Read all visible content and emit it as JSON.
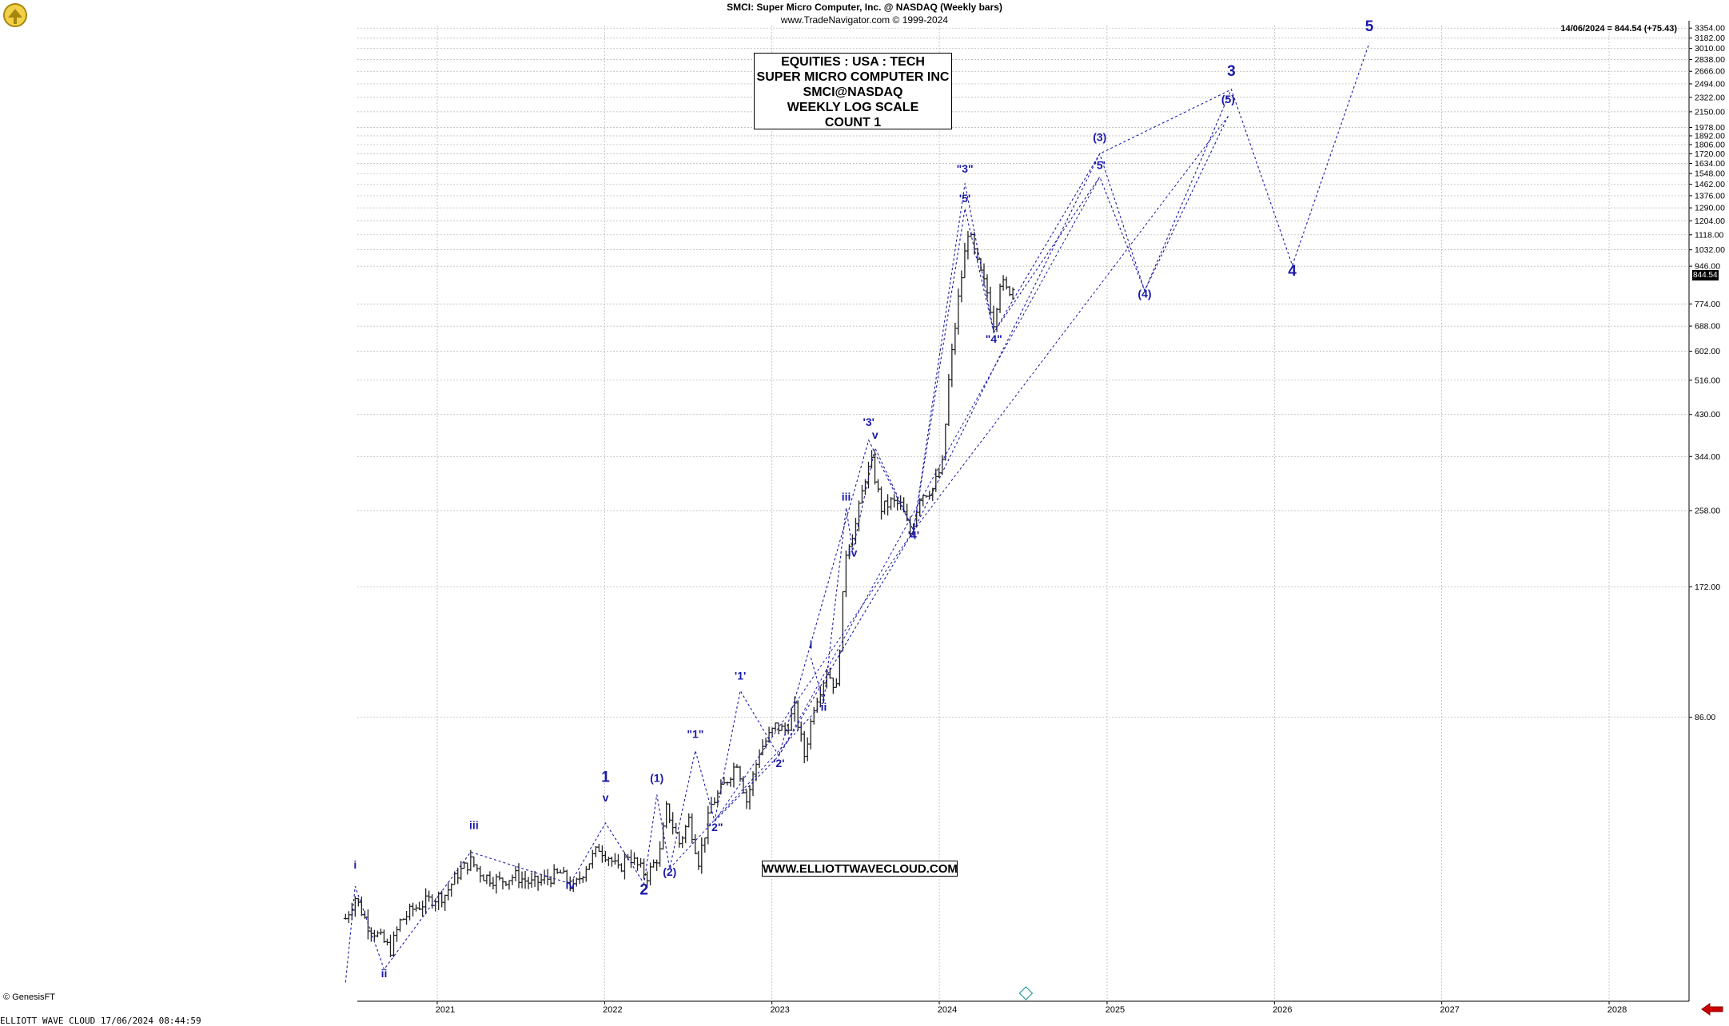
{
  "header": {
    "title": "SMCI:  Super Micro Computer, Inc. @ NASDAQ  (Weekly bars)",
    "subtitle": "www.TradeNavigator.com © 1999-2024"
  },
  "last_value_label": "14/06/2024 = 844.54 (+75.43)",
  "price_tag": "844.54",
  "info_box": [
    "EQUITIES : USA : TECH",
    "SUPER MICRO COMPUTER INC",
    "SMCI@NASDAQ",
    "WEEKLY LOG SCALE",
    "COUNT 1"
  ],
  "website": "WWW.ELLIOTTWAVECLOUD.COM",
  "copyright": "© GenesisFT",
  "footer": "ELLIOTT WAVE CLOUD   17/06/2024 08:44:59",
  "colors": {
    "wave": "#1a1aa8",
    "bar": "#222222",
    "grid": "#b0b0b0",
    "accent": "#cc0000"
  },
  "icons": [
    "bull-bear-logo-icon",
    "diamond-marker-icon",
    "red-arrow-icon"
  ],
  "chart_data": {
    "type": "ohlc",
    "scale": "log",
    "xlabel": "",
    "ylabel": "",
    "x_ticks": [
      "2021",
      "2022",
      "2023",
      "2024",
      "2025",
      "2026",
      "2027",
      "2028"
    ],
    "y_ticks": [
      86,
      172,
      258,
      344,
      430,
      516,
      602,
      688,
      774,
      946,
      1032,
      1118,
      1204,
      1290,
      1376,
      1462,
      1548,
      1634,
      1720,
      1806,
      1892,
      1978,
      2150,
      2322,
      2494,
      2666,
      2838,
      3010,
      3182,
      3354
    ],
    "ylim": [
      19,
      3400
    ],
    "last_close": 844.54,
    "price_path": [
      [
        "2020-06-15",
        29.5
      ],
      [
        "2020-07-06",
        33.0
      ],
      [
        "2020-08-03",
        28.5
      ],
      [
        "2020-08-31",
        26.5
      ],
      [
        "2020-09-21",
        25.0
      ],
      [
        "2020-10-12",
        29.0
      ],
      [
        "2020-11-09",
        31.0
      ],
      [
        "2020-12-14",
        32.5
      ],
      [
        "2021-01-18",
        33.5
      ],
      [
        "2021-02-15",
        37.5
      ],
      [
        "2021-03-15",
        40.0
      ],
      [
        "2021-04-12",
        37.0
      ],
      [
        "2021-05-17",
        36.0
      ],
      [
        "2021-06-21",
        37.0
      ],
      [
        "2021-07-26",
        35.5
      ],
      [
        "2021-08-30",
        36.5
      ],
      [
        "2021-09-27",
        37.5
      ],
      [
        "2021-10-25",
        34.5
      ],
      [
        "2021-11-22",
        39.0
      ],
      [
        "2021-12-20",
        43.0
      ],
      [
        "2022-01-10",
        41.0
      ],
      [
        "2022-01-31",
        38.0
      ],
      [
        "2022-02-21",
        41.5
      ],
      [
        "2022-03-14",
        39.0
      ],
      [
        "2022-04-04",
        37.0
      ],
      [
        "2022-05-02",
        42.0
      ],
      [
        "2022-05-16",
        53.0
      ],
      [
        "2022-06-13",
        44.0
      ],
      [
        "2022-07-04",
        50.0
      ],
      [
        "2022-07-25",
        40.0
      ],
      [
        "2022-08-22",
        54.0
      ],
      [
        "2022-09-19",
        60.0
      ],
      [
        "2022-10-17",
        68.0
      ],
      [
        "2022-11-07",
        55.0
      ],
      [
        "2022-12-05",
        72.0
      ],
      [
        "2023-01-09",
        82.0
      ],
      [
        "2023-01-30",
        80.0
      ],
      [
        "2023-02-20",
        90.0
      ],
      [
        "2023-03-13",
        70.0
      ],
      [
        "2023-04-03",
        92.0
      ],
      [
        "2023-05-01",
        110.0
      ],
      [
        "2023-05-22",
        100.0
      ],
      [
        "2023-06-12",
        210.0
      ],
      [
        "2023-07-03",
        240.0
      ],
      [
        "2023-07-24",
        310.0
      ],
      [
        "2023-08-07",
        332.0
      ],
      [
        "2023-08-28",
        260.0
      ],
      [
        "2023-09-18",
        270.0
      ],
      [
        "2023-10-09",
        265.0
      ],
      [
        "2023-10-30",
        228.0
      ],
      [
        "2023-11-20",
        280.0
      ],
      [
        "2023-12-18",
        290.0
      ],
      [
        "2024-01-08",
        330.0
      ],
      [
        "2024-01-22",
        520.0
      ],
      [
        "2024-02-12",
        800.0
      ],
      [
        "2024-03-04",
        1150.0
      ],
      [
        "2024-03-25",
        950.0
      ],
      [
        "2024-04-15",
        820.0
      ],
      [
        "2024-04-29",
        700.0
      ],
      [
        "2024-05-13",
        880.0
      ],
      [
        "2024-05-27",
        830.0
      ],
      [
        "2024-06-14",
        844.54
      ]
    ],
    "wave_labels": [
      {
        "label": "i",
        "date": "2020-07-06",
        "value": 38.5
      },
      {
        "label": "ii",
        "date": "2020-09-07",
        "value": 21.6
      },
      {
        "label": "iii",
        "date": "2021-03-22",
        "value": 47.5
      },
      {
        "label": "iv",
        "date": "2021-10-18",
        "value": 34.5
      },
      {
        "label": "v",
        "date": "2022-01-03",
        "value": 55.0
      },
      {
        "label": "1",
        "date": "2022-01-03",
        "value": 61.0
      },
      {
        "label": "2",
        "date": "2022-03-28",
        "value": 33.5
      },
      {
        "label": "(1)",
        "date": "2022-04-25",
        "value": 61.0
      },
      {
        "label": "(2)",
        "date": "2022-05-23",
        "value": 37.0
      },
      {
        "label": "\"1\"",
        "date": "2022-07-18",
        "value": 77.0
      },
      {
        "label": "\"2\"",
        "date": "2022-08-29",
        "value": 47.0
      },
      {
        "label": "'1'",
        "date": "2022-10-24",
        "value": 105.0
      },
      {
        "label": "'2'",
        "date": "2023-01-16",
        "value": 66.0
      },
      {
        "label": "i",
        "date": "2023-03-27",
        "value": 124.0
      },
      {
        "label": "ii",
        "date": "2023-04-24",
        "value": 89.0
      },
      {
        "label": "iii",
        "date": "2023-06-12",
        "value": 272.0
      },
      {
        "label": "iv",
        "date": "2023-06-26",
        "value": 202.0
      },
      {
        "label": "'3'",
        "date": "2023-07-31",
        "value": 405.0
      },
      {
        "label": "v",
        "date": "2023-08-14",
        "value": 378.0
      },
      {
        "label": "'4'",
        "date": "2023-11-06",
        "value": 222.0
      },
      {
        "label": "\"3\"",
        "date": "2024-02-26",
        "value": 1555.0
      },
      {
        "label": "'5'",
        "date": "2024-02-26",
        "value": 1330.0
      },
      {
        "label": "\"4\"",
        "date": "2024-04-29",
        "value": 630.0
      },
      {
        "label": "(3)",
        "date": "2024-12-16",
        "value": 1840.0
      },
      {
        "label": "'5'",
        "date": "2024-12-16",
        "value": 1585.0
      },
      {
        "label": "(4)",
        "date": "2025-03-24",
        "value": 800.0
      },
      {
        "label": "(5)",
        "date": "2025-09-22",
        "value": 2250.0
      },
      {
        "label": "3",
        "date": "2025-09-29",
        "value": 2600.0
      },
      {
        "label": "4",
        "date": "2026-02-09",
        "value": 900.0
      },
      {
        "label": "5",
        "date": "2026-07-27",
        "value": 3300.0
      }
    ],
    "wave_paths": [
      [
        [
          "2020-06-15",
          21.0
        ],
        [
          "2020-07-06",
          35.0
        ],
        [
          "2020-09-07",
          22.5
        ],
        [
          "2021-03-15",
          42.0
        ],
        [
          "2021-10-18",
          35.5
        ],
        [
          "2022-01-03",
          49.0
        ],
        [
          "2022-03-28",
          35.5
        ],
        [
          "2022-04-25",
          57.0
        ],
        [
          "2022-05-23",
          38.5
        ],
        [
          "2022-07-18",
          72.0
        ],
        [
          "2022-08-29",
          49.5
        ],
        [
          "2022-10-24",
          99.0
        ],
        [
          "2023-01-16",
          70.0
        ],
        [
          "2023-07-31",
          375.0
        ],
        [
          "2023-11-06",
          232.0
        ],
        [
          "2024-02-26",
          1470.0
        ],
        [
          "2024-04-29",
          665.0
        ],
        [
          "2024-12-16",
          1720.0
        ],
        [
          "2025-03-24",
          830.0
        ],
        [
          "2025-09-29",
          2420.0
        ],
        [
          "2026-02-09",
          950.0
        ],
        [
          "2026-07-27",
          3100.0
        ]
      ],
      [
        [
          "2023-03-27",
          118.0
        ],
        [
          "2023-04-24",
          93.0
        ],
        [
          "2023-06-12",
          262.0
        ],
        [
          "2023-06-26",
          208.0
        ],
        [
          "2023-08-14",
          360.0
        ],
        [
          "2023-11-06",
          232.0
        ],
        [
          "2024-02-26",
          1285.0
        ],
        [
          "2024-04-29",
          665.0
        ],
        [
          "2024-12-16",
          1520.0
        ],
        [
          "2025-03-24",
          830.0
        ],
        [
          "2025-09-22",
          2100.0
        ]
      ],
      [
        [
          "2022-08-29",
          49.5
        ],
        [
          "2023-01-16",
          70.0
        ],
        [
          "2023-11-06",
          232.0
        ],
        [
          "2024-12-16",
          1720.0
        ],
        [
          "2025-09-29",
          2420.0
        ]
      ]
    ],
    "channels": [
      [
        [
          "2023-01-16",
          70.0
        ],
        [
          "2024-12-16",
          1520.0
        ]
      ],
      [
        [
          "2023-11-06",
          232.0
        ],
        [
          "2025-09-22",
          2100.0
        ]
      ],
      [
        [
          "2022-05-23",
          38.5
        ],
        [
          "2023-04-24",
          93.0
        ]
      ],
      [
        [
          "2022-08-29",
          49.5
        ],
        [
          "2023-11-06",
          232.0
        ]
      ]
    ]
  }
}
